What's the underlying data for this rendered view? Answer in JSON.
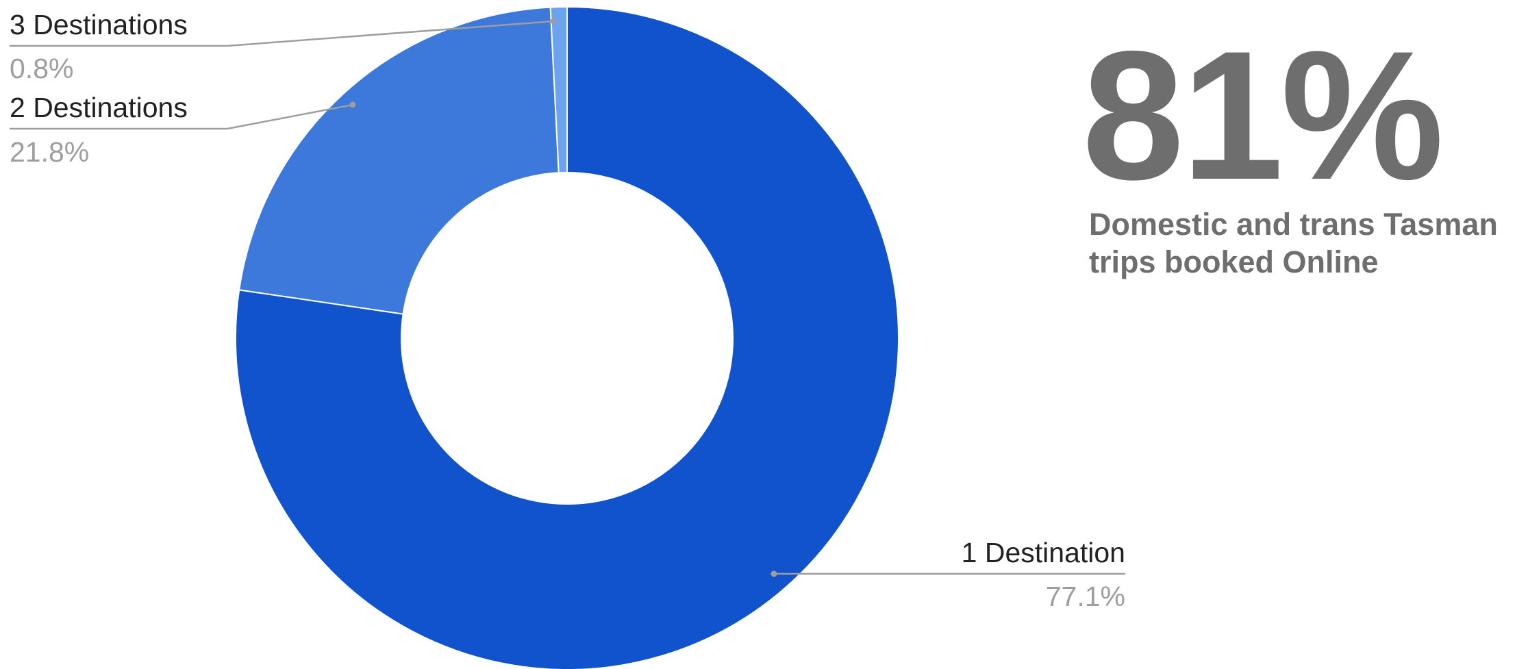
{
  "chart_data": {
    "type": "pie",
    "donut": true,
    "slices": [
      {
        "label": "1 Destination",
        "value": 77.1,
        "value_label": "77.1%",
        "color": "#1053cc"
      },
      {
        "label": "2 Destinations",
        "value": 21.8,
        "value_label": "21.8%",
        "color": "#3d78db"
      },
      {
        "label": "3 Destinations",
        "value": 0.8,
        "value_label": "0.8%",
        "color": "#6ba3ee"
      }
    ]
  },
  "stat": {
    "value": "81%",
    "caption_line1": "Domestic and trans Tasman",
    "caption_line2": "trips booked Online"
  },
  "colors": {
    "stat_text": "#6e6e6e",
    "leader_line": "#9e9e9e"
  }
}
